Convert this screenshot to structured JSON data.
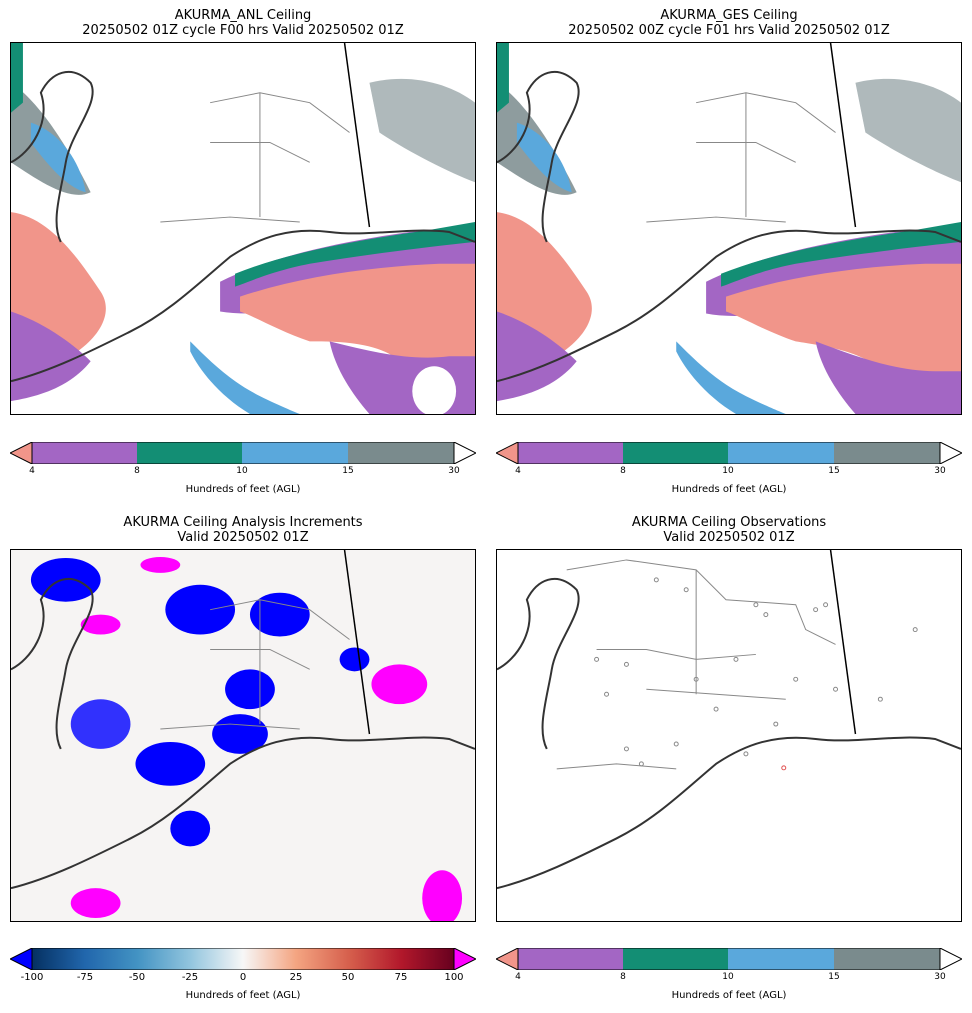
{
  "panels": [
    {
      "id": "anl",
      "title_line1": "AKURMA_ANL Ceiling",
      "title_line2": "20250502 01Z cycle F00 hrs Valid 20250502 01Z"
    },
    {
      "id": "ges",
      "title_line1": "AKURMA_GES Ceiling",
      "title_line2": "20250502 00Z cycle F01 hrs Valid 20250502 01Z"
    },
    {
      "id": "inc",
      "title_line1": "AKURMA Ceiling Analysis Increments",
      "title_line2": "Valid 20250502 01Z"
    },
    {
      "id": "obs",
      "title_line1": "AKURMA Ceiling Observations",
      "title_line2": "Valid 20250502 01Z"
    }
  ],
  "ceiling_colorbar": {
    "label": "Hundreds of feet (AGL)",
    "ticks": [
      "4",
      "8",
      "10",
      "15",
      "30"
    ],
    "colors": [
      "#f1958a",
      "#a366c4",
      "#138e74",
      "#5aa8dc",
      "#7a8b8d",
      "#ffffff"
    ],
    "extend": "both"
  },
  "increment_colorbar": {
    "label": "Hundreds of feet (AGL)",
    "ticks": [
      "-100",
      "-75",
      "-50",
      "-25",
      "0",
      "25",
      "50",
      "75",
      "100"
    ],
    "range": [
      -100,
      100
    ],
    "cmap": "RdBu_r",
    "under_color": "#0000ff",
    "over_color": "#ff00ff"
  }
}
